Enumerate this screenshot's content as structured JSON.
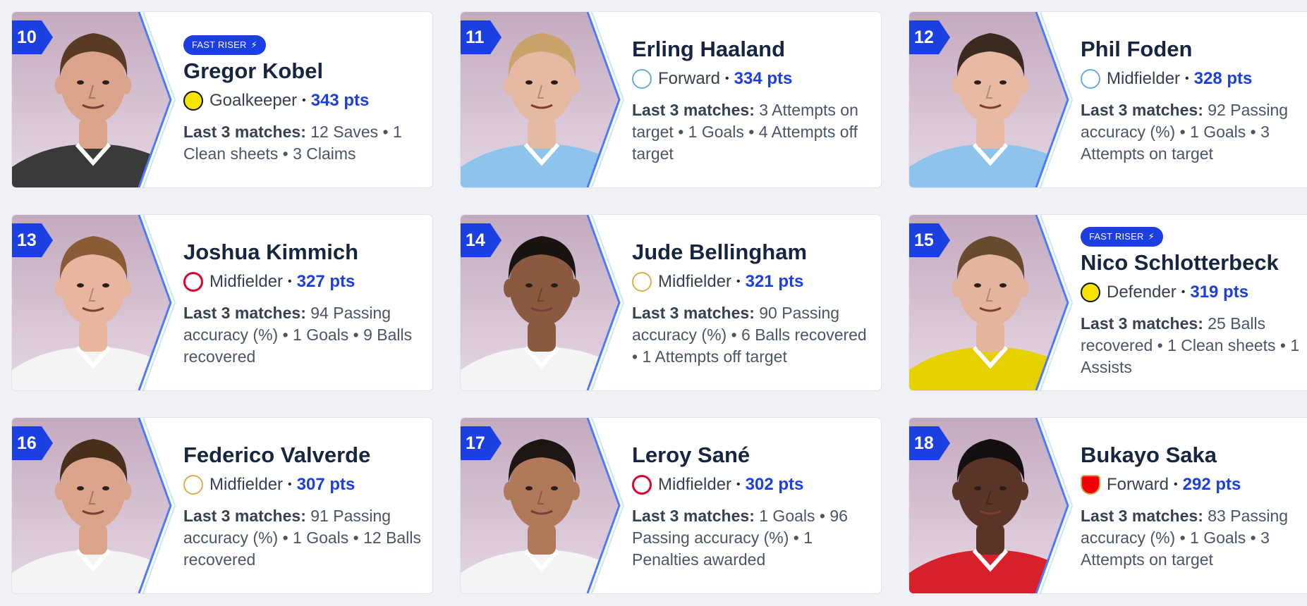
{
  "badge_label": "FAST RISER",
  "stats_label": "Last 3 matches:",
  "players": [
    {
      "rank": "10",
      "name": "Gregor Kobel",
      "club": "bvb",
      "club_icon": "bvb-crest-icon",
      "position": "Goalkeeper",
      "points": "343 pts",
      "fast_riser": true,
      "stats": "12 Saves • 1 Clean sheets • 3 Claims",
      "skin": "#d9a48a",
      "hair": "#5a3a24",
      "shirt": "#3a3a3a"
    },
    {
      "rank": "11",
      "name": "Erling Haaland",
      "club": "mci",
      "club_icon": "man-city-crest-icon",
      "position": "Forward",
      "points": "334 pts",
      "fast_riser": false,
      "stats": "3 Attempts on target • 1 Goals • 4 Attempts off target",
      "skin": "#e6b9a2",
      "hair": "#c9a36a",
      "shirt": "#8ec4ec"
    },
    {
      "rank": "12",
      "name": "Phil Foden",
      "club": "mci",
      "club_icon": "man-city-crest-icon",
      "position": "Midfielder",
      "points": "328 pts",
      "fast_riser": false,
      "stats": "92 Passing accuracy (%) • 1 Goals • 3 Attempts on target",
      "skin": "#e8baa4",
      "hair": "#3a2a20",
      "shirt": "#8ec4ec"
    },
    {
      "rank": "13",
      "name": "Joshua Kimmich",
      "club": "fcb",
      "club_icon": "bayern-crest-icon",
      "position": "Midfielder",
      "points": "327 pts",
      "fast_riser": false,
      "stats": "94 Passing accuracy (%) • 1 Goals • 9 Balls recovered",
      "skin": "#e8b69e",
      "hair": "#8a5c36",
      "shirt": "#f4f4f4"
    },
    {
      "rank": "14",
      "name": "Jude Bellingham",
      "club": "rma",
      "club_icon": "real-madrid-crest-icon",
      "position": "Midfielder",
      "points": "321 pts",
      "fast_riser": false,
      "stats": "90 Passing accuracy (%) • 6 Balls recovered • 1 Attempts off target",
      "skin": "#8a5a40",
      "hair": "#1a1410",
      "shirt": "#f4f4f4"
    },
    {
      "rank": "15",
      "name": "Nico Schlotterbeck",
      "club": "bvb",
      "club_icon": "bvb-crest-icon",
      "position": "Defender",
      "points": "319 pts",
      "fast_riser": true,
      "stats": "25 Balls recovered • 1 Clean sheets • 1 Assists",
      "skin": "#e4b49c",
      "hair": "#6a4a2e",
      "shirt": "#e5d000"
    },
    {
      "rank": "16",
      "name": "Federico Valverde",
      "club": "rma",
      "club_icon": "real-madrid-crest-icon",
      "position": "Midfielder",
      "points": "307 pts",
      "fast_riser": false,
      "stats": "91 Passing accuracy (%) • 1 Goals • 12 Balls recovered",
      "skin": "#d9a48a",
      "hair": "#4a2e1c",
      "shirt": "#f4f4f4"
    },
    {
      "rank": "17",
      "name": "Leroy Sané",
      "club": "fcb",
      "club_icon": "bayern-crest-icon",
      "position": "Midfielder",
      "points": "302 pts",
      "fast_riser": false,
      "stats": "1 Goals • 96 Passing accuracy (%) • 1 Penalties awarded",
      "skin": "#b07a5a",
      "hair": "#1e1612",
      "shirt": "#f4f4f4"
    },
    {
      "rank": "18",
      "name": "Bukayo Saka",
      "club": "ars",
      "club_icon": "arsenal-crest-icon",
      "position": "Forward",
      "points": "292 pts",
      "fast_riser": false,
      "stats": "83 Passing accuracy (%) • 1 Goals • 3 Attempts on target",
      "skin": "#5a3426",
      "hair": "#141010",
      "shirt": "#d8202a"
    }
  ]
}
